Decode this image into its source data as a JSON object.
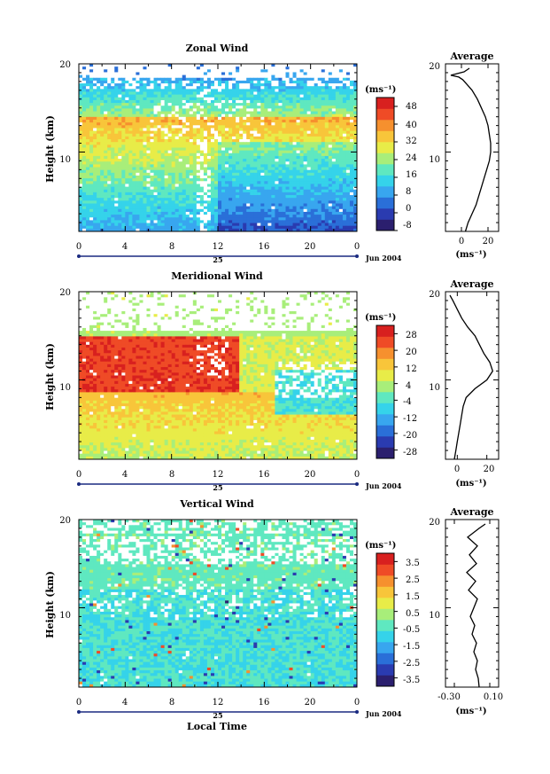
{
  "colormap": {
    "stops": [
      "#2b1f6e",
      "#2a3bb0",
      "#2a6fd8",
      "#38a6ef",
      "#35d3ea",
      "#5fe8c0",
      "#a8ee7a",
      "#e8ec48",
      "#f8c53a",
      "#f6902e",
      "#ef4b26",
      "#d8201f"
    ]
  },
  "chart_data": [
    {
      "type": "heatmap",
      "title": "Zonal Wind",
      "ylabel": "Height (km)",
      "xlabel": "",
      "x_ticks": [
        "0",
        "4",
        "8",
        "12",
        "16",
        "20",
        "0"
      ],
      "y_ticks": [
        "10",
        "20"
      ],
      "xlim": [
        0,
        24
      ],
      "ylim": [
        1,
        20
      ],
      "date_day": "25",
      "date_label": "Jun 2004",
      "colorbar": {
        "unit": "(ms⁻¹)",
        "ticks": [
          "48",
          "40",
          "32",
          "24",
          "16",
          "8",
          "0",
          "-8"
        ],
        "range": [
          -8,
          52
        ]
      },
      "average": {
        "title": "Average",
        "unit": "(ms⁻¹)",
        "x_ticks": [
          "0",
          "20"
        ],
        "y_ticks": [
          "10",
          "20"
        ],
        "xlim": [
          -12,
          28
        ],
        "profile": [
          [
            3,
            1
          ],
          [
            5,
            2
          ],
          [
            8,
            3
          ],
          [
            11,
            4
          ],
          [
            13,
            5
          ],
          [
            15,
            6
          ],
          [
            17,
            7
          ],
          [
            19,
            8
          ],
          [
            21,
            9
          ],
          [
            22,
            10
          ],
          [
            22,
            11
          ],
          [
            21,
            12
          ],
          [
            20,
            13
          ],
          [
            18,
            14
          ],
          [
            15,
            15
          ],
          [
            12,
            16
          ],
          [
            8,
            17
          ],
          [
            4,
            17.7
          ],
          [
            1,
            18.2
          ],
          [
            -2,
            18.5
          ],
          [
            -8,
            18.7
          ],
          [
            2,
            19.1
          ],
          [
            6,
            19.5
          ]
        ]
      }
    },
    {
      "type": "heatmap",
      "title": "Meridional Wind",
      "ylabel": "Height (km)",
      "xlabel": "",
      "x_ticks": [
        "0",
        "4",
        "8",
        "12",
        "16",
        "20",
        "0"
      ],
      "y_ticks": [
        "10",
        "20"
      ],
      "xlim": [
        0,
        24
      ],
      "ylim": [
        1,
        20
      ],
      "date_day": "25",
      "date_label": "Jun 2004",
      "colorbar": {
        "unit": "(ms⁻¹)",
        "ticks": [
          "28",
          "20",
          "12",
          "4",
          "-4",
          "-12",
          "-20",
          "-28"
        ],
        "range": [
          -32,
          32
        ]
      },
      "average": {
        "title": "Average",
        "unit": "(ms⁻¹)",
        "x_ticks": [
          "0",
          "20"
        ],
        "y_ticks": [
          "10",
          "20"
        ],
        "xlim": [
          -8,
          28
        ],
        "profile": [
          [
            -2,
            1
          ],
          [
            -1,
            2
          ],
          [
            0,
            3
          ],
          [
            1,
            4
          ],
          [
            2,
            5
          ],
          [
            3,
            6
          ],
          [
            4,
            7
          ],
          [
            6,
            8
          ],
          [
            12,
            9
          ],
          [
            20,
            10
          ],
          [
            24,
            11
          ],
          [
            22,
            12
          ],
          [
            18,
            13
          ],
          [
            15,
            14
          ],
          [
            12,
            15
          ],
          [
            7,
            16
          ],
          [
            3,
            17
          ],
          [
            0,
            18
          ],
          [
            -3,
            19
          ],
          [
            -5,
            19.6
          ]
        ]
      }
    },
    {
      "type": "heatmap",
      "title": "Vertical Wind",
      "ylabel": "Height (km)",
      "xlabel": "Local Time",
      "x_ticks": [
        "0",
        "4",
        "8",
        "12",
        "16",
        "20",
        "0"
      ],
      "y_ticks": [
        "10",
        "20"
      ],
      "xlim": [
        0,
        24
      ],
      "ylim": [
        1,
        20
      ],
      "date_day": "25",
      "date_label": "Jun 2004",
      "colorbar": {
        "unit": "(ms⁻¹)",
        "ticks": [
          "3.5",
          "2.5",
          "1.5",
          "0.5",
          "-0.5",
          "-1.5",
          "-2.5",
          "-3.5"
        ],
        "range": [
          -4,
          4
        ]
      },
      "average": {
        "title": "Average",
        "unit": "(ms⁻¹)",
        "x_ticks": [
          "-0.30",
          "0.10"
        ],
        "y_ticks": [
          "10",
          "20"
        ],
        "xlim": [
          -0.4,
          0.2
        ],
        "profile": [
          [
            -0.02,
            1
          ],
          [
            -0.03,
            2
          ],
          [
            -0.06,
            3
          ],
          [
            -0.04,
            4
          ],
          [
            -0.08,
            5
          ],
          [
            -0.05,
            6
          ],
          [
            -0.1,
            7
          ],
          [
            -0.07,
            8
          ],
          [
            -0.12,
            9
          ],
          [
            -0.08,
            10
          ],
          [
            -0.04,
            11
          ],
          [
            -0.14,
            12
          ],
          [
            -0.06,
            13
          ],
          [
            -0.16,
            14
          ],
          [
            -0.05,
            15
          ],
          [
            -0.13,
            16
          ],
          [
            -0.04,
            17
          ],
          [
            -0.15,
            18
          ],
          [
            -0.02,
            19
          ],
          [
            0.05,
            19.5
          ]
        ]
      }
    }
  ]
}
